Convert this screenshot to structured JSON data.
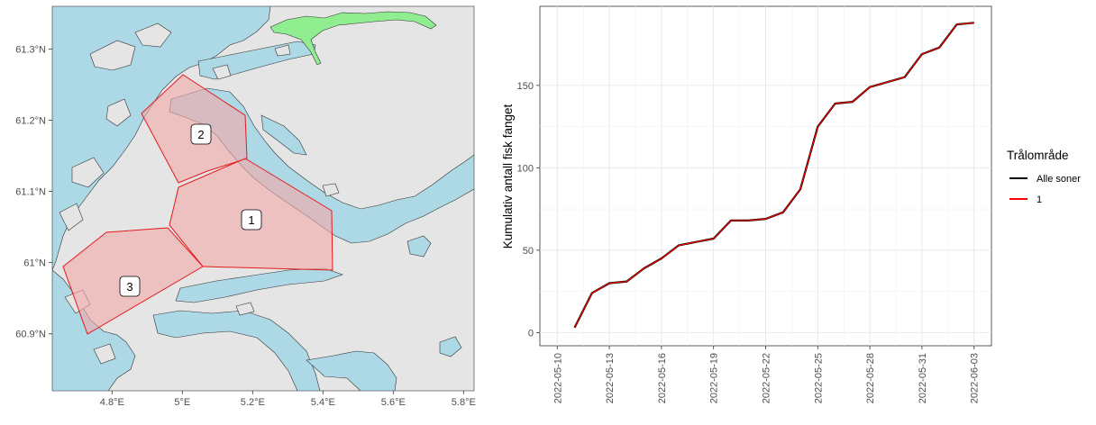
{
  "chart_data": [
    {
      "type": "map",
      "x_ticks": [
        "4.8°E",
        "5°E",
        "5.2°E",
        "5.4°E",
        "5.6°E",
        "5.8°E"
      ],
      "y_ticks": [
        "61.3°N",
        "61.2°N",
        "61.1°N",
        "61°N",
        "60.9°N"
      ],
      "xlim": [
        4.63,
        5.83
      ],
      "ylim": [
        60.82,
        61.36
      ],
      "zones": [
        {
          "label": "1",
          "label_lon": 5.19,
          "label_lat": 61.06
        },
        {
          "label": "2",
          "label_lon": 5.05,
          "label_lat": 61.18
        },
        {
          "label": "3",
          "label_lon": 4.85,
          "label_lat": 60.97
        }
      ],
      "colors": {
        "water": "#add8e6",
        "land": "#e5e5e5",
        "zone_fill": "#f4a8a8",
        "zone_edge": "#e41a1c",
        "lake": "#90ee90"
      }
    },
    {
      "type": "line",
      "ylabel": "Kumulativ antall fisk fanget",
      "xlabel": "",
      "x_ticks": [
        "2022-05-10",
        "2022-05-13",
        "2022-05-16",
        "2022-05-19",
        "2022-05-22",
        "2022-05-25",
        "2022-05-28",
        "2022-05-31",
        "2022-06-03"
      ],
      "y_ticks": [
        0,
        50,
        100,
        150
      ],
      "xlim": [
        "2022-05-09",
        "2022-06-04"
      ],
      "ylim": [
        -8,
        198
      ],
      "grid": true,
      "legend": {
        "title": "Trålområde",
        "position": "right"
      },
      "series": [
        {
          "name": "Alle soner",
          "color": "#000000",
          "x": [
            "2022-05-11",
            "2022-05-12",
            "2022-05-13",
            "2022-05-14",
            "2022-05-15",
            "2022-05-16",
            "2022-05-17",
            "2022-05-18",
            "2022-05-19",
            "2022-05-20",
            "2022-05-21",
            "2022-05-22",
            "2022-05-23",
            "2022-05-24",
            "2022-05-25",
            "2022-05-26",
            "2022-05-27",
            "2022-05-28",
            "2022-05-29",
            "2022-05-30",
            "2022-05-31",
            "2022-06-01",
            "2022-06-02",
            "2022-06-03"
          ],
          "y": [
            3,
            24,
            30,
            31,
            39,
            45,
            53,
            55,
            57,
            68,
            68,
            69,
            73,
            87,
            125,
            139,
            140,
            149,
            152,
            155,
            169,
            173,
            187,
            188
          ]
        },
        {
          "name": "1",
          "color": "#ff0000",
          "x": [
            "2022-05-11",
            "2022-05-12",
            "2022-05-13",
            "2022-05-14",
            "2022-05-15",
            "2022-05-16",
            "2022-05-17",
            "2022-05-18",
            "2022-05-19",
            "2022-05-20",
            "2022-05-21",
            "2022-05-22",
            "2022-05-23",
            "2022-05-24",
            "2022-05-25",
            "2022-05-26",
            "2022-05-27",
            "2022-05-28",
            "2022-05-29",
            "2022-05-30",
            "2022-05-31",
            "2022-06-01",
            "2022-06-02",
            "2022-06-03"
          ],
          "y": [
            3,
            24,
            30,
            31,
            39,
            45,
            53,
            55,
            57,
            68,
            68,
            69,
            73,
            87,
            125,
            139,
            140,
            149,
            152,
            155,
            169,
            173,
            187,
            188
          ]
        }
      ]
    }
  ]
}
